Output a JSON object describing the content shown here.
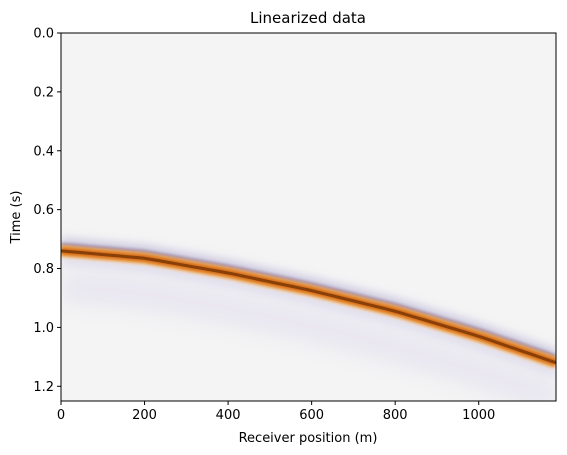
{
  "chart_data": {
    "type": "heatmap",
    "title": "Linearized data",
    "xlabel": "Receiver position (m)",
    "ylabel": "Time (s)",
    "xlim": [
      0,
      1185
    ],
    "ylim": [
      1.25,
      0.0
    ],
    "y_inverted": true,
    "x_ticks": [
      0,
      200,
      400,
      600,
      800,
      1000
    ],
    "x_tick_labels": [
      "0",
      "200",
      "400",
      "600",
      "800",
      "1000"
    ],
    "y_ticks": [
      0.0,
      0.2,
      0.4,
      0.6,
      0.8,
      1.0,
      1.2
    ],
    "y_tick_labels": [
      "0.0",
      "0.2",
      "0.4",
      "0.6",
      "0.8",
      "1.0",
      "1.2"
    ],
    "grid": false,
    "colormap": "PuOr",
    "background_color": "#f4f4f4",
    "positive_color": "#7f3b08",
    "negative_color": "#2d004b",
    "event": {
      "description": "reflection event",
      "x": [
        0,
        200,
        400,
        600,
        800,
        1000,
        1185
      ],
      "time": [
        0.74,
        0.765,
        0.815,
        0.875,
        0.945,
        1.03,
        1.12
      ]
    }
  }
}
